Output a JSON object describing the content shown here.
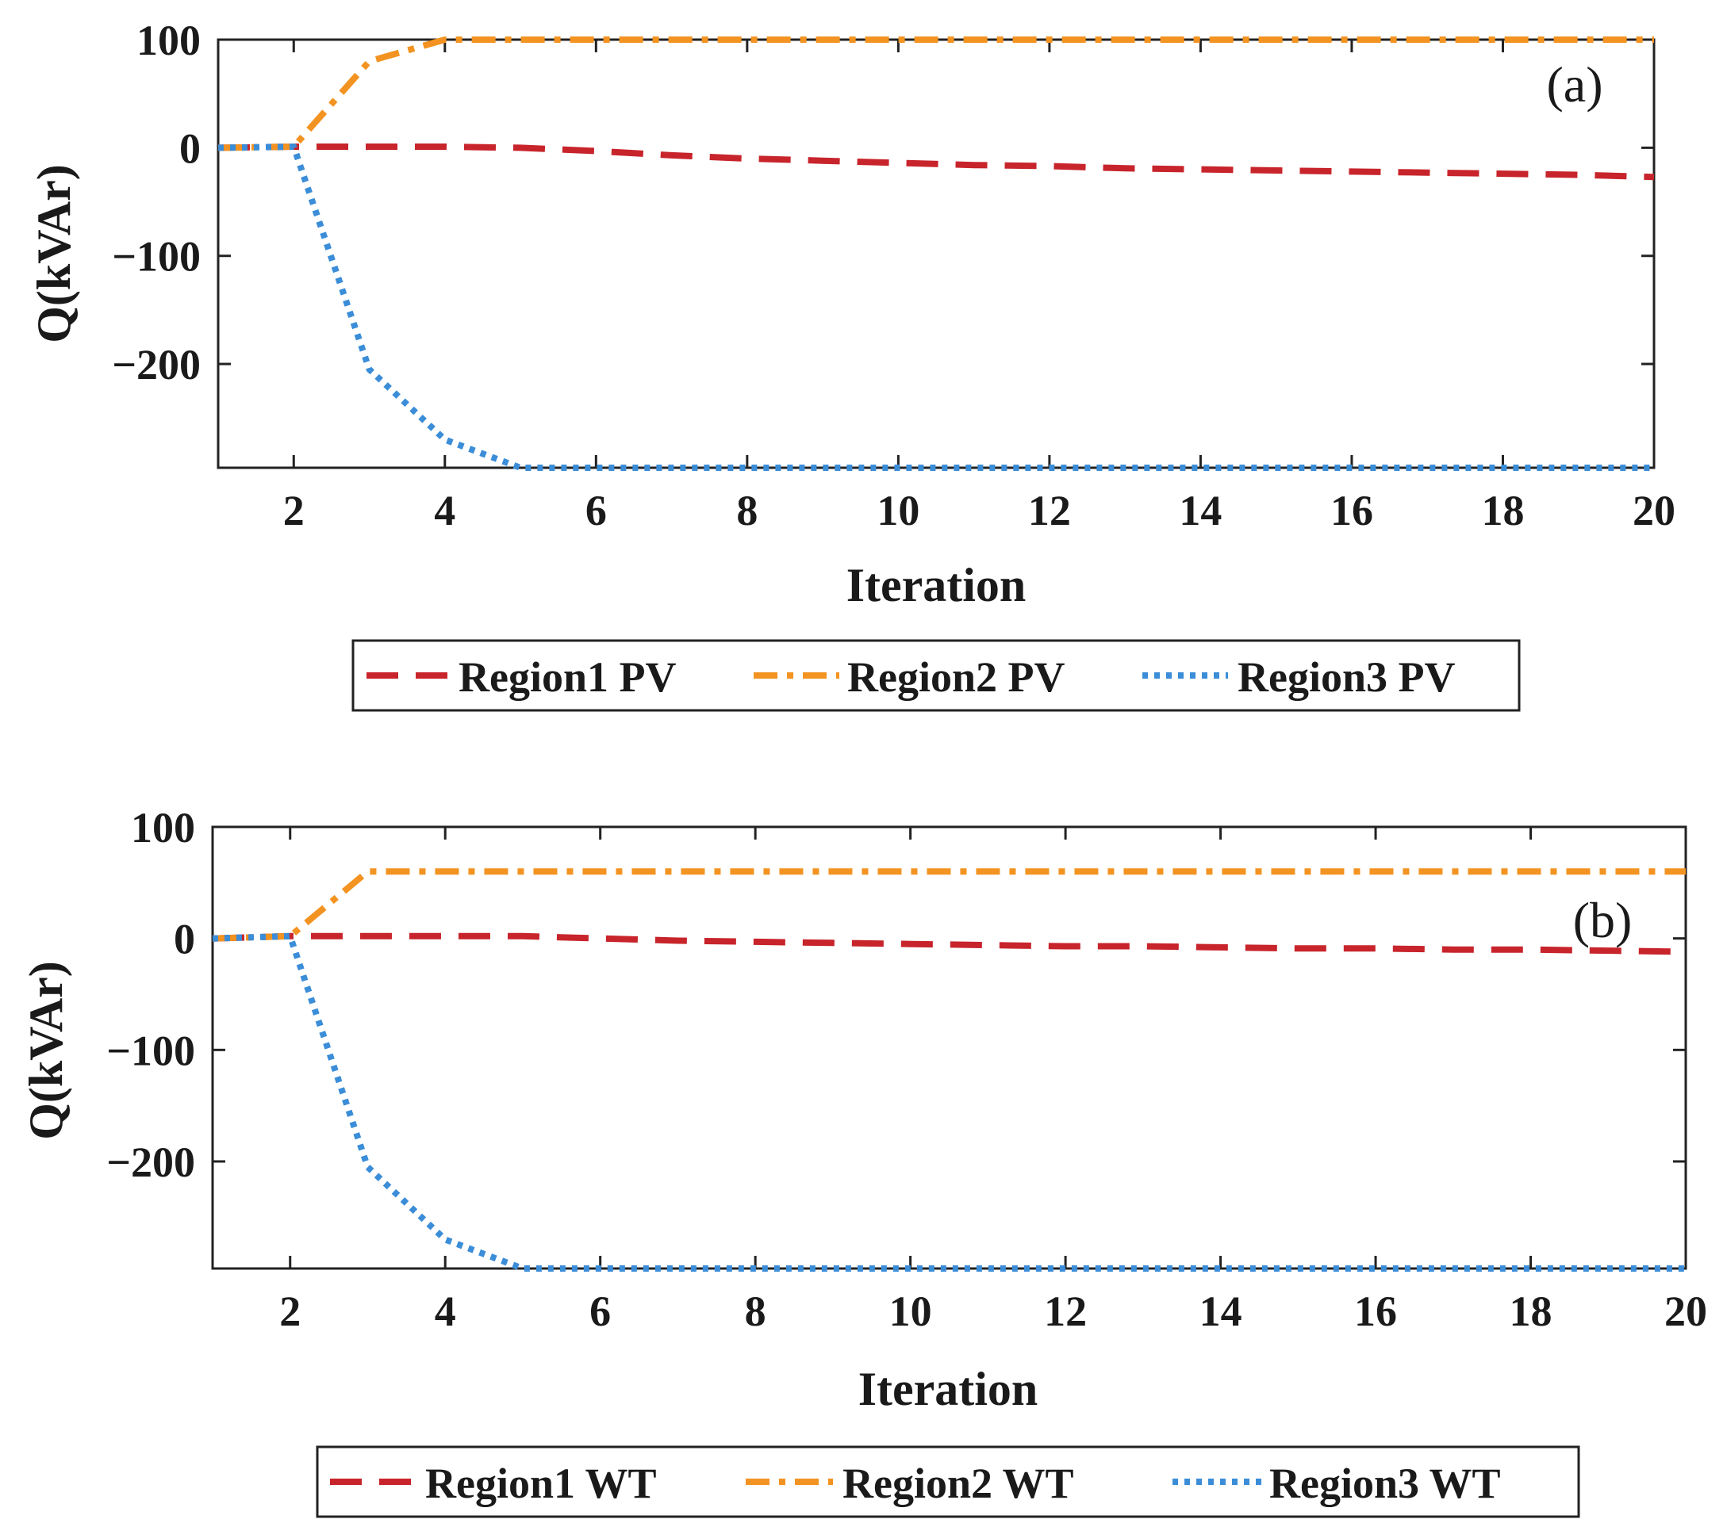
{
  "chart_data": [
    {
      "type": "line",
      "panel_label": "(a)",
      "xlabel": "Iteration",
      "ylabel": "Q(kVAr)",
      "xlim": [
        1,
        20
      ],
      "ylim": [
        -296,
        100
      ],
      "xticks": [
        2,
        4,
        6,
        8,
        10,
        12,
        14,
        16,
        18,
        20
      ],
      "yticks": [
        100,
        0,
        -100,
        -200
      ],
      "ytick_labels": [
        "100",
        "0",
        "−100",
        "−200"
      ],
      "x": [
        1,
        2,
        3,
        4,
        5,
        6,
        7,
        8,
        9,
        10,
        11,
        12,
        13,
        14,
        15,
        16,
        17,
        18,
        19,
        20
      ],
      "series": [
        {
          "name": "Region1 PV",
          "color": "#C8242B",
          "style": "dashed",
          "values": [
            0,
            1,
            1,
            1,
            0,
            -3,
            -7,
            -10,
            -12,
            -14,
            -16,
            -17,
            -19,
            -20,
            -21,
            -22,
            -23,
            -24,
            -25,
            -27
          ]
        },
        {
          "name": "Region2 PV",
          "color": "#F39321",
          "style": "dashdot",
          "values": [
            0,
            1,
            80,
            100,
            100,
            100,
            100,
            100,
            100,
            100,
            100,
            100,
            100,
            100,
            100,
            100,
            100,
            100,
            100,
            100
          ]
        },
        {
          "name": "Region3 PV",
          "color": "#3B8DD8",
          "style": "dotted",
          "values": [
            0,
            1,
            -205,
            -270,
            -296,
            -296,
            -296,
            -296,
            -296,
            -296,
            -296,
            -296,
            -296,
            -296,
            -296,
            -296,
            -296,
            -296,
            -296,
            -296
          ]
        }
      ],
      "legend": [
        "Region1 PV",
        "Region2 PV",
        "Region3 PV"
      ],
      "legend_position": "below"
    },
    {
      "type": "line",
      "panel_label": "(b)",
      "xlabel": "Iteration",
      "ylabel": "Q(kVAr)",
      "xlim": [
        1,
        20
      ],
      "ylim": [
        -296,
        100
      ],
      "xticks": [
        2,
        4,
        6,
        8,
        10,
        12,
        14,
        16,
        18,
        20
      ],
      "yticks": [
        100,
        0,
        -100,
        -200
      ],
      "ytick_labels": [
        "100",
        "0",
        "−100",
        "−200"
      ],
      "x": [
        1,
        2,
        3,
        4,
        5,
        6,
        7,
        8,
        9,
        10,
        11,
        12,
        13,
        14,
        15,
        16,
        17,
        18,
        19,
        20
      ],
      "series": [
        {
          "name": "Region1 WT",
          "color": "#C8242B",
          "style": "dashed",
          "values": [
            0,
            2,
            2,
            2,
            2,
            0,
            -2,
            -3,
            -4,
            -5,
            -6,
            -7,
            -7,
            -8,
            -9,
            -9,
            -10,
            -10,
            -11,
            -12
          ]
        },
        {
          "name": "Region2 WT",
          "color": "#F39321",
          "style": "dashdot",
          "values": [
            0,
            2,
            60,
            60,
            60,
            60,
            60,
            60,
            60,
            60,
            60,
            60,
            60,
            60,
            60,
            60,
            60,
            60,
            60,
            60
          ]
        },
        {
          "name": "Region3 WT",
          "color": "#3B8DD8",
          "style": "dotted",
          "values": [
            0,
            2,
            -205,
            -270,
            -296,
            -296,
            -296,
            -296,
            -296,
            -296,
            -296,
            -296,
            -296,
            -296,
            -296,
            -296,
            -296,
            -296,
            -296,
            -296
          ]
        }
      ],
      "legend": [
        "Region1 WT",
        "Region2 WT",
        "Region3 WT"
      ],
      "legend_position": "below"
    }
  ]
}
